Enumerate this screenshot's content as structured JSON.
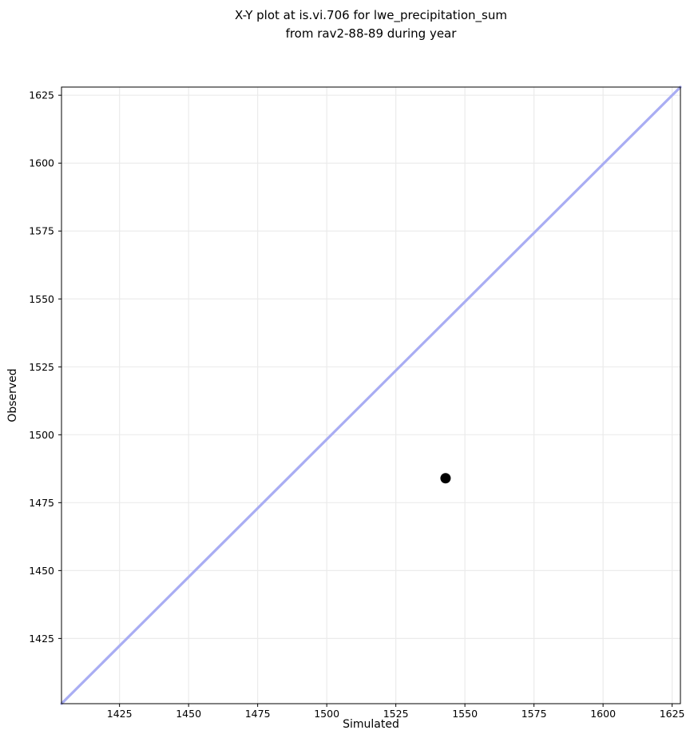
{
  "figure": {
    "title_line1": "X-Y plot at is.vi.706 for lwe_precipitation_sum",
    "title_line2": "from rav2-88-89 during year",
    "xlabel": "Simulated",
    "ylabel": "Observed"
  },
  "chart_data": {
    "type": "scatter",
    "title": "X-Y plot at is.vi.706 for lwe_precipitation_sum\nfrom rav2-88-89 during year",
    "xlabel": "Simulated",
    "ylabel": "Observed",
    "xlim": [
      1404,
      1628
    ],
    "ylim": [
      1401,
      1628
    ],
    "xticks": [
      1425,
      1450,
      1475,
      1500,
      1525,
      1550,
      1575,
      1600,
      1625
    ],
    "yticks": [
      1425,
      1450,
      1475,
      1500,
      1525,
      1550,
      1575,
      1600,
      1625
    ],
    "grid": true,
    "legend": false,
    "series": [
      {
        "name": "observation-point",
        "type": "scatter",
        "points": [
          {
            "x": 1543,
            "y": 1484
          }
        ],
        "color": "#000000",
        "marker_radius": 6.5
      },
      {
        "name": "one-to-one-line",
        "type": "line",
        "spans_plot_diagonal": true,
        "color": "#a9adf3",
        "width": 3.2
      }
    ],
    "colors": {
      "background": "#ffffff",
      "grid": "#ebebeb",
      "spine": "#000000",
      "tick": "#000000",
      "line": "#a9adf3",
      "point": "#000000"
    }
  }
}
